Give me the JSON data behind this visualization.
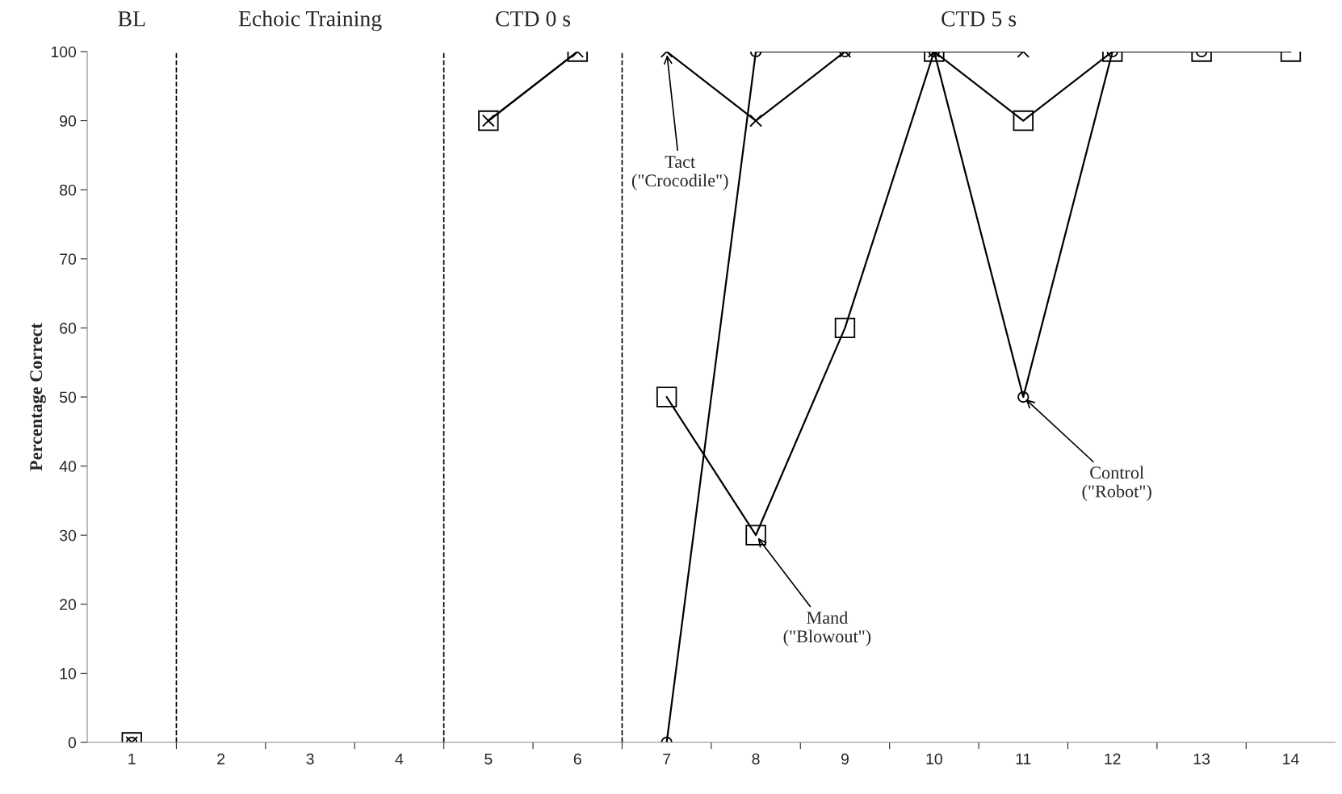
{
  "chart_data": {
    "type": "line",
    "ylabel": "Percentage Correct",
    "xlim": [
      0.5,
      14.5
    ],
    "ylim": [
      0,
      100
    ],
    "xticks": [
      1,
      {
        "value": 1.5,
        "label": null
      },
      2,
      {
        "value": 2.5,
        "label": null
      },
      3,
      {
        "value": 3.5,
        "label": null
      },
      4,
      {
        "value": 4.5,
        "label": null
      },
      5,
      {
        "value": 5.5,
        "label": null
      },
      6,
      {
        "value": 6.5,
        "label": null
      },
      7,
      {
        "value": 7.5,
        "label": null
      },
      8,
      {
        "value": 8.5,
        "label": null
      },
      9,
      {
        "value": 9.5,
        "label": null
      },
      10,
      {
        "value": 10.5,
        "label": null
      },
      11,
      {
        "value": 11.5,
        "label": null
      },
      12,
      {
        "value": 12.5,
        "label": null
      },
      13,
      {
        "value": 13.5,
        "label": null
      },
      14
    ],
    "yticks": [
      0,
      10,
      20,
      30,
      40,
      50,
      60,
      70,
      80,
      90,
      100
    ],
    "grid": false,
    "legend": false,
    "line_style": "solid",
    "series": [
      {
        "color": "#000000",
        "marker": "square",
        "x": [
          1,
          2,
          3,
          4,
          5,
          6
        ],
        "values": [
          0,
          null,
          null,
          null,
          90,
          100
        ]
      },
      {
        "color": "#000000",
        "marker": "cross",
        "x": [
          1,
          2,
          3,
          4,
          5,
          6
        ],
        "values": [
          0,
          null,
          null,
          null,
          90,
          100
        ]
      },
      {
        "color": "#000000",
        "marker": "square",
        "x": [
          7,
          8,
          9,
          10,
          11,
          12,
          13,
          14
        ],
        "values": [
          50,
          30,
          60,
          100,
          90,
          100,
          100,
          100
        ]
      },
      {
        "color": "#000000",
        "marker": "cross",
        "x": [
          7,
          8,
          9,
          10,
          11
        ],
        "values": [
          100,
          90,
          100,
          100,
          100
        ]
      },
      {
        "color": "#000000",
        "marker": "circle",
        "x": [
          1,
          2,
          3,
          4,
          5,
          6,
          7,
          8,
          9,
          10,
          11,
          12,
          13
        ],
        "values": [
          0,
          null,
          null,
          null,
          null,
          null,
          0,
          100,
          100,
          100,
          50,
          100,
          100
        ]
      }
    ],
    "ref_lines": [
      {
        "axis": "x",
        "value": 1.5,
        "color": "#000000",
        "line_style": "dashed"
      },
      {
        "axis": "x",
        "value": 4.5,
        "color": "#000000",
        "line_style": "dashed"
      },
      {
        "axis": "x",
        "value": 6.5,
        "color": "#000000",
        "line_style": "dashed"
      }
    ],
    "annotations": [
      "BL",
      "Echoic Training",
      "CTD 0 s",
      "CTD 5 s",
      {
        "text": "Tact\n(\"Crocodile\")",
        "x": 7,
        "y": 100
      },
      {
        "text": "Mand\n(\"Blowout\")",
        "x": 8,
        "y": 30
      },
      {
        "text": "Control\n(\"Robot\")",
        "x": 11,
        "y": 50
      }
    ]
  }
}
